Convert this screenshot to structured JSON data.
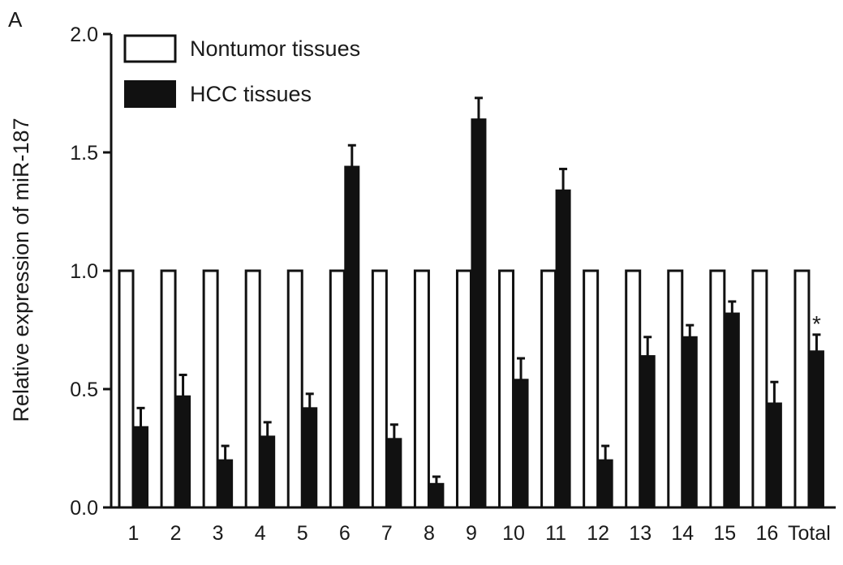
{
  "panel_label": "A",
  "chart_data": {
    "type": "bar",
    "title": "",
    "xlabel": "",
    "ylabel": "Relative expression of miR-187",
    "ylim": [
      0,
      2.0
    ],
    "yticks": [
      0.0,
      0.5,
      1.0,
      1.5,
      2.0
    ],
    "ytick_labels": [
      "0.0",
      "0.5",
      "1.0",
      "1.5",
      "2.0"
    ],
    "categories": [
      "1",
      "2",
      "3",
      "4",
      "5",
      "6",
      "7",
      "8",
      "9",
      "10",
      "11",
      "12",
      "13",
      "14",
      "15",
      "16",
      "Total"
    ],
    "legend_position": "top-left",
    "series": [
      {
        "name": "Nontumor tissues",
        "fill": "#ffffff",
        "values": [
          1,
          1,
          1,
          1,
          1,
          1,
          1,
          1,
          1,
          1,
          1,
          1,
          1,
          1,
          1,
          1,
          1
        ]
      },
      {
        "name": "HCC tissues",
        "fill": "#111111",
        "values": [
          0.34,
          0.47,
          0.2,
          0.3,
          0.42,
          1.44,
          0.29,
          0.1,
          1.64,
          0.54,
          1.34,
          0.2,
          0.64,
          0.72,
          0.82,
          0.44,
          0.66
        ],
        "errors": [
          0.08,
          0.09,
          0.06,
          0.06,
          0.06,
          0.09,
          0.06,
          0.03,
          0.09,
          0.09,
          0.09,
          0.06,
          0.08,
          0.05,
          0.05,
          0.09,
          0.07
        ]
      }
    ],
    "annotations": [
      {
        "category": "Total",
        "text": "*"
      }
    ]
  }
}
